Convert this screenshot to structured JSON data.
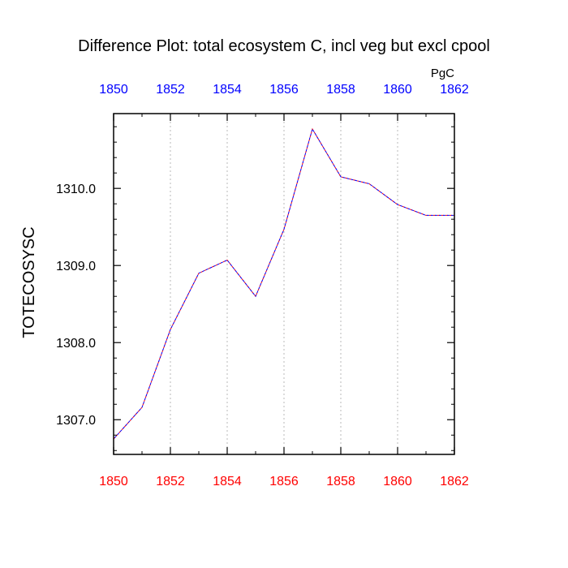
{
  "chart_data": {
    "type": "line",
    "title": "Difference Plot: total ecosystem C, incl veg but excl cpool",
    "units": "PgC",
    "ylabel": "TOTECOSYSC",
    "xlabel": "",
    "xlim": [
      1850,
      1862
    ],
    "ylim": [
      1306.55,
      1310.97
    ],
    "x_ticks": [
      "1850",
      "1852",
      "1854",
      "1856",
      "1858",
      "1860",
      "1862"
    ],
    "x_tick_values": [
      1850,
      1852,
      1854,
      1856,
      1858,
      1860,
      1862
    ],
    "y_ticks": [
      "1307.0",
      "1308.0",
      "1309.0",
      "1310.0"
    ],
    "y_tick_values": [
      1307.0,
      1308.0,
      1309.0,
      1310.0
    ],
    "grid": "vertical dotted at major x ticks",
    "colors": {
      "top_axis_labels": "#0000ff",
      "bottom_axis_labels": "#ff0000",
      "series_a": "#ff0000",
      "series_b": "#0000ff"
    },
    "x": [
      1850,
      1851,
      1852,
      1853,
      1854,
      1855,
      1856,
      1857,
      1858,
      1859,
      1860,
      1861,
      1862
    ],
    "series": [
      {
        "values": [
          1306.75,
          1307.16,
          1308.17,
          1308.9,
          1309.07,
          1308.6,
          1309.47,
          1310.77,
          1310.15,
          1310.06,
          1309.79,
          1309.65,
          1309.65
        ]
      },
      {
        "values": [
          1306.75,
          1307.16,
          1308.17,
          1308.9,
          1309.07,
          1308.6,
          1309.47,
          1310.77,
          1310.15,
          1310.06,
          1309.79,
          1309.65,
          1309.65
        ]
      }
    ]
  }
}
